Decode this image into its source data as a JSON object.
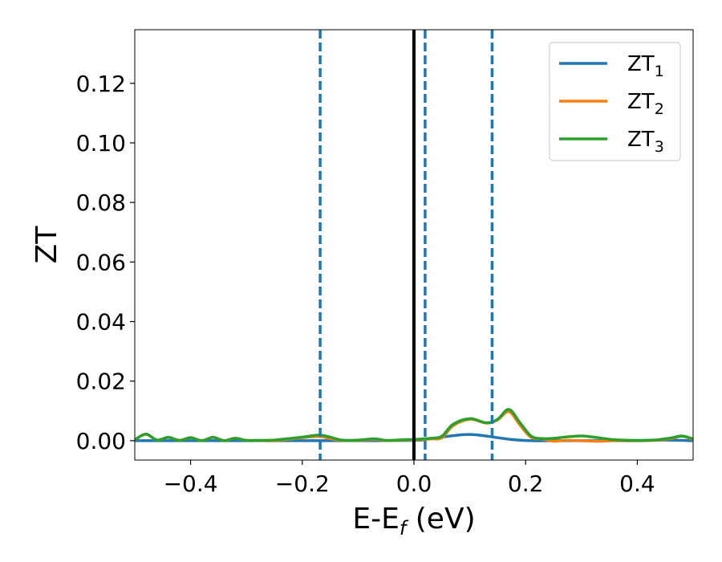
{
  "chart_data": {
    "type": "line",
    "xlabel": {
      "main": "E-E",
      "sub": "f",
      "unit": " (eV)"
    },
    "ylabel": "ZT",
    "xlim": [
      -0.5,
      0.5
    ],
    "ylim": [
      -0.0065,
      0.138
    ],
    "x_ticks": [
      {
        "value": -0.4,
        "label": "−0.4"
      },
      {
        "value": -0.2,
        "label": "−0.2"
      },
      {
        "value": 0.0,
        "label": "0.0"
      },
      {
        "value": 0.2,
        "label": "0.2"
      },
      {
        "value": 0.4,
        "label": "0.4"
      }
    ],
    "y_ticks": [
      {
        "value": 0.0,
        "label": "0.00"
      },
      {
        "value": 0.02,
        "label": "0.02"
      },
      {
        "value": 0.04,
        "label": "0.04"
      },
      {
        "value": 0.06,
        "label": "0.06"
      },
      {
        "value": 0.08,
        "label": "0.08"
      },
      {
        "value": 0.1,
        "label": "0.10"
      },
      {
        "value": 0.12,
        "label": "0.12"
      }
    ],
    "grid": false,
    "legend_position": "top-right",
    "vertical_lines": [
      {
        "x": 0.0,
        "style": "solid",
        "color": "#000000"
      },
      {
        "x": -0.168,
        "style": "dashed",
        "color": "#1f77b4"
      },
      {
        "x": 0.02,
        "style": "dashed",
        "color": "#1f77b4"
      },
      {
        "x": 0.14,
        "style": "dashed",
        "color": "#1f77b4"
      }
    ],
    "series": [
      {
        "name": "ZT",
        "name_sub": "1",
        "color": "#1f77b4",
        "x": [
          -0.5,
          -0.4,
          -0.3,
          -0.2,
          -0.1,
          0.0,
          0.02,
          0.05,
          0.08,
          0.1,
          0.12,
          0.15,
          0.18,
          0.21,
          0.25,
          0.3,
          0.35,
          0.4,
          0.45,
          0.5
        ],
        "y": [
          0.0,
          0.0,
          0.0,
          0.0,
          0.0,
          0.0001,
          0.0004,
          0.0012,
          0.0019,
          0.0021,
          0.0018,
          0.001,
          0.0003,
          0.0,
          0.0,
          0.0,
          0.0,
          0.0,
          0.0002,
          0.0
        ]
      },
      {
        "name": "ZT",
        "name_sub": "2",
        "color": "#ff7f0e",
        "x": [
          -0.5,
          -0.48,
          -0.46,
          -0.44,
          -0.42,
          -0.4,
          -0.38,
          -0.36,
          -0.34,
          -0.32,
          -0.3,
          -0.28,
          -0.25,
          -0.2,
          -0.17,
          -0.15,
          -0.13,
          -0.1,
          -0.07,
          -0.05,
          -0.02,
          0.0,
          0.03,
          0.05,
          0.07,
          0.1,
          0.13,
          0.15,
          0.17,
          0.19,
          0.21,
          0.23,
          0.25,
          0.27,
          0.3,
          0.33,
          0.36,
          0.4,
          0.43,
          0.46,
          0.48,
          0.5
        ],
        "y": [
          0.0003,
          0.0022,
          0.0002,
          0.0011,
          0.0001,
          0.001,
          0.0,
          0.0011,
          0.0,
          0.0008,
          0.0001,
          0.0001,
          0.0,
          0.001,
          0.0014,
          0.0007,
          0.0001,
          0.0001,
          0.0004,
          0.0,
          0.0002,
          0.0002,
          0.0006,
          0.001,
          0.005,
          0.0072,
          0.0059,
          0.007,
          0.0098,
          0.0052,
          0.0011,
          0.0006,
          -0.0002,
          0.0001,
          0.0,
          -0.0002,
          0.0,
          0.0,
          0.0001,
          0.0007,
          0.0015,
          0.0004
        ]
      },
      {
        "name": "ZT",
        "name_sub": "3",
        "color": "#2ca02c",
        "x": [
          -0.5,
          -0.48,
          -0.46,
          -0.44,
          -0.42,
          -0.4,
          -0.38,
          -0.36,
          -0.34,
          -0.32,
          -0.3,
          -0.28,
          -0.25,
          -0.2,
          -0.17,
          -0.15,
          -0.13,
          -0.1,
          -0.07,
          -0.05,
          -0.02,
          0.0,
          0.03,
          0.05,
          0.07,
          0.1,
          0.13,
          0.15,
          0.17,
          0.19,
          0.21,
          0.23,
          0.25,
          0.27,
          0.3,
          0.33,
          0.36,
          0.4,
          0.43,
          0.46,
          0.48,
          0.5
        ],
        "y": [
          0.0003,
          0.0022,
          0.0002,
          0.0011,
          0.0001,
          0.001,
          0.0,
          0.0011,
          0.0,
          0.0008,
          0.0001,
          0.0001,
          0.0002,
          0.0012,
          0.0019,
          0.0012,
          0.0002,
          0.0002,
          0.0006,
          0.0001,
          0.0003,
          0.0004,
          0.0008,
          0.0015,
          0.0055,
          0.0074,
          0.006,
          0.0072,
          0.0105,
          0.006,
          0.0015,
          0.0007,
          0.0008,
          0.0012,
          0.0016,
          0.001,
          0.0003,
          0.0001,
          0.0002,
          0.0009,
          0.0016,
          0.0006
        ]
      }
    ]
  }
}
